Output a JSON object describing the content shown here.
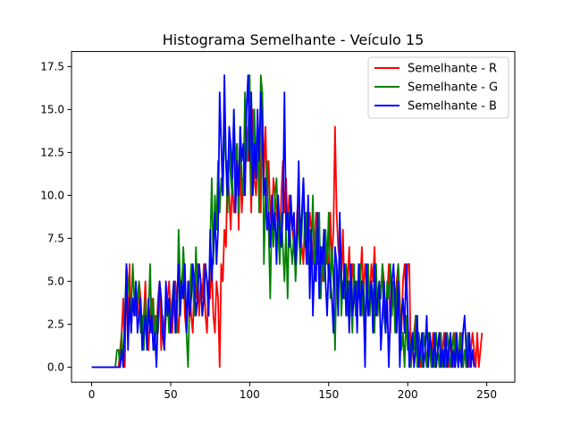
{
  "chart_data": {
    "type": "line",
    "title": "Histograma Semelhante - Veículo 15",
    "xlabel": "",
    "ylabel": "",
    "xlim": [
      -12.75,
      267.75
    ],
    "ylim": [
      -0.875,
      18.375
    ],
    "xticks": [
      0,
      50,
      100,
      150,
      200,
      250
    ],
    "xtick_labels": [
      "0",
      "50",
      "100",
      "150",
      "200",
      "250"
    ],
    "yticks": [
      0.0,
      2.5,
      5.0,
      7.5,
      10.0,
      12.5,
      15.0,
      17.5
    ],
    "ytick_labels": [
      "0.0",
      "2.5",
      "5.0",
      "7.5",
      "10.0",
      "12.5",
      "15.0",
      "17.5"
    ],
    "grid": false,
    "legend_position": "upper right",
    "series": [
      {
        "name": "Semelhante - R",
        "color": "#ff0000",
        "x_start": 0,
        "values": [
          0,
          0,
          0,
          0,
          0,
          0,
          0,
          0,
          0,
          0,
          0,
          0,
          0,
          0,
          0,
          0,
          0,
          0,
          1,
          2,
          4,
          0,
          6,
          2,
          6,
          2,
          4,
          3,
          4,
          3,
          5,
          4,
          2,
          3,
          5,
          2,
          1,
          3,
          4,
          2,
          3,
          2,
          4,
          5,
          1,
          3,
          2,
          3,
          4,
          5,
          3,
          2,
          4,
          5,
          3,
          2,
          4,
          5,
          6,
          3,
          2,
          4,
          5,
          3,
          2,
          5,
          4,
          6,
          3,
          5,
          4,
          6,
          3,
          2,
          5,
          4,
          6,
          3,
          2,
          5,
          4,
          0,
          6,
          5,
          8,
          7,
          12,
          10,
          8,
          11,
          9,
          10,
          13,
          8,
          12,
          9,
          11,
          10,
          14,
          12,
          13,
          9,
          15,
          11,
          10,
          12,
          13,
          9,
          16,
          11,
          14,
          10,
          12,
          9,
          8,
          11,
          10,
          9,
          8,
          7,
          10,
          12,
          9,
          11,
          8,
          10,
          9,
          8,
          7,
          6,
          9,
          10,
          8,
          7,
          6,
          9,
          8,
          7,
          9,
          8,
          6,
          7,
          9,
          8,
          6,
          7,
          5,
          8,
          6,
          7,
          5,
          9,
          6,
          8,
          14,
          9,
          7,
          6,
          5,
          8,
          4,
          6,
          5,
          7,
          4,
          6,
          5,
          4,
          3,
          6,
          5,
          7,
          4,
          6,
          5,
          3,
          4,
          6,
          5,
          7,
          4,
          3,
          5,
          4,
          6,
          5,
          3,
          4,
          6,
          2,
          5,
          4,
          3,
          5,
          6,
          4,
          2,
          5,
          6,
          4,
          6,
          6,
          0,
          1,
          2,
          3,
          1,
          2,
          0,
          1,
          2,
          1,
          0,
          2,
          1,
          0,
          2,
          1,
          0,
          1,
          2,
          0,
          1,
          2,
          0,
          1,
          0,
          2,
          1,
          0,
          2,
          1,
          0,
          1,
          2,
          0,
          1,
          0,
          2,
          0,
          1,
          2,
          1,
          0,
          2,
          0,
          1,
          2
        ]
      },
      {
        "name": "Semelhante - G",
        "color": "#008000",
        "x_start": 0,
        "values": [
          0,
          0,
          0,
          0,
          0,
          0,
          0,
          0,
          0,
          0,
          0,
          0,
          0,
          0,
          0,
          0,
          1,
          1,
          0,
          2,
          0,
          3,
          6,
          5,
          4,
          3,
          6,
          4,
          3,
          4,
          5,
          2,
          3,
          1,
          4,
          2,
          3,
          6,
          2,
          4,
          1,
          3,
          2,
          5,
          4,
          2,
          1,
          3,
          4,
          2,
          3,
          4,
          5,
          3,
          2,
          8,
          5,
          4,
          7,
          5,
          2,
          0,
          4,
          6,
          5,
          3,
          7,
          4,
          6,
          5,
          3,
          4,
          6,
          5,
          3,
          7,
          11,
          6,
          10,
          8,
          12,
          9,
          11,
          10,
          14,
          12,
          9,
          13,
          11,
          10,
          15,
          12,
          13,
          9,
          14,
          11,
          10,
          16,
          12,
          13,
          17,
          10,
          12,
          15,
          11,
          14,
          9,
          17,
          16,
          6,
          10,
          12,
          8,
          4,
          9,
          7,
          10,
          11,
          8,
          6,
          9,
          7,
          5,
          8,
          4,
          9,
          7,
          6,
          8,
          5,
          7,
          9,
          6,
          8,
          11,
          7,
          9,
          6,
          8,
          7,
          10,
          5,
          8,
          6,
          9,
          4,
          7,
          5,
          8,
          6,
          9,
          4,
          7,
          5,
          1,
          6,
          4,
          7,
          3,
          5,
          4,
          6,
          3,
          5,
          4,
          2,
          6,
          3,
          5,
          4,
          6,
          3,
          5,
          2,
          4,
          6,
          3,
          5,
          4,
          2,
          6,
          3,
          5,
          4,
          6,
          3,
          2,
          5,
          4,
          6,
          3,
          5,
          2,
          4,
          6,
          3,
          1,
          2,
          0,
          3,
          1,
          2,
          0,
          2,
          1,
          3,
          0,
          2,
          1,
          0,
          2,
          1,
          0,
          2,
          1,
          0,
          1,
          0,
          2,
          1,
          0,
          2,
          0,
          1,
          0,
          2,
          1,
          0,
          1,
          2,
          0,
          1,
          0,
          2,
          1,
          0,
          1,
          0,
          2
        ]
      },
      {
        "name": "Semelhante - B",
        "color": "#0000ff",
        "x_start": 0,
        "values": [
          0,
          0,
          0,
          0,
          0,
          0,
          0,
          0,
          0,
          0,
          0,
          0,
          0,
          0,
          0,
          0,
          0,
          0,
          0,
          1,
          0,
          2,
          6,
          1,
          4,
          2,
          4,
          3,
          5,
          2,
          3,
          4,
          1,
          2,
          3,
          1,
          4,
          2,
          3,
          1,
          2,
          0,
          3,
          5,
          4,
          2,
          1,
          5,
          3,
          4,
          2,
          3,
          5,
          2,
          4,
          6,
          3,
          5,
          4,
          6,
          2,
          5,
          3,
          4,
          6,
          5,
          3,
          4,
          6,
          5,
          3,
          4,
          6,
          5,
          3,
          8,
          5,
          7,
          9,
          6,
          8,
          16,
          13,
          10,
          17,
          12,
          10,
          14,
          13,
          11,
          15,
          9,
          12,
          10,
          14,
          12,
          13,
          10,
          15,
          17,
          12,
          16,
          10,
          13,
          11,
          15,
          12,
          16,
          14,
          10,
          11,
          8,
          9,
          7,
          10,
          8,
          9,
          6,
          10,
          8,
          7,
          9,
          16,
          8,
          9,
          7,
          10,
          8,
          9,
          6,
          8,
          12,
          7,
          9,
          11,
          8,
          6,
          10,
          4,
          8,
          3,
          6,
          5,
          9,
          4,
          7,
          6,
          8,
          5,
          3,
          6,
          5,
          4,
          2,
          7,
          6,
          3,
          9,
          5,
          4,
          6,
          3,
          5,
          2,
          6,
          3,
          4,
          5,
          2,
          6,
          3,
          5,
          4,
          0,
          6,
          3,
          4,
          5,
          2,
          6,
          3,
          4,
          5,
          1,
          3,
          5,
          2,
          4,
          0,
          3,
          5,
          6,
          4,
          2,
          5,
          0,
          3,
          4,
          2,
          6,
          3,
          0,
          1,
          2,
          0,
          1,
          3,
          0,
          1,
          2,
          0,
          1,
          3,
          0,
          2,
          1,
          0,
          2,
          0,
          1,
          2,
          0,
          1,
          0,
          2,
          0,
          1,
          2,
          0,
          1,
          0,
          2,
          0,
          1,
          0,
          2,
          3,
          1,
          0,
          2,
          0,
          1,
          0
        ]
      }
    ]
  }
}
